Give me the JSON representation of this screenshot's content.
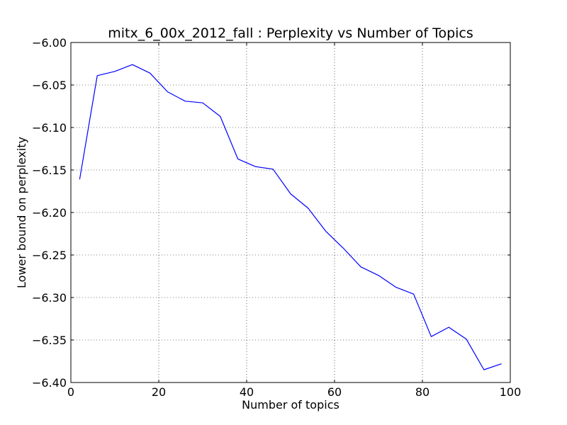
{
  "chart_data": {
    "type": "line",
    "title": "mitx_6_00x_2012_fall : Perplexity vs Number of Topics",
    "xlabel": "Number of topics",
    "ylabel": "Lower bound on perplexity",
    "xlim": [
      0,
      100
    ],
    "ylim": [
      -6.4,
      -6.0
    ],
    "xticks": [
      0,
      20,
      40,
      60,
      80,
      100
    ],
    "xtick_labels": [
      "0",
      "20",
      "40",
      "60",
      "80",
      "100"
    ],
    "yticks": [
      -6.0,
      -6.05,
      -6.1,
      -6.15,
      -6.2,
      -6.25,
      -6.3,
      -6.35,
      -6.4
    ],
    "ytick_labels": [
      "−6.00",
      "−6.05",
      "−6.10",
      "−6.15",
      "−6.20",
      "−6.25",
      "−6.30",
      "−6.35",
      "−6.40"
    ],
    "grid": true,
    "series": [
      {
        "color": "#0000ff",
        "x": [
          2,
          6,
          10,
          14,
          18,
          22,
          26,
          30,
          34,
          38,
          42,
          46,
          50,
          54,
          58,
          62,
          66,
          70,
          74,
          78,
          82,
          86,
          90,
          94,
          98
        ],
        "y": [
          -6.161,
          -6.039,
          -6.034,
          -6.026,
          -6.036,
          -6.058,
          -6.069,
          -6.071,
          -6.087,
          -6.137,
          -6.146,
          -6.149,
          -6.178,
          -6.195,
          -6.222,
          -6.242,
          -6.264,
          -6.274,
          -6.288,
          -6.296,
          -6.346,
          -6.335,
          -6.349,
          -6.385,
          -6.378
        ]
      }
    ]
  }
}
